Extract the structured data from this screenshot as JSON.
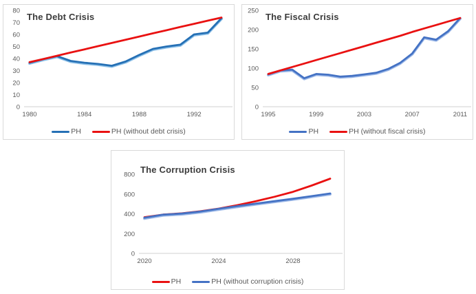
{
  "colors": {
    "axis_line": "#d9d9d9",
    "tick_text": "#595959",
    "title_text": "#3b3b3b",
    "box_border": "#d9d9d9",
    "background": "#ffffff"
  },
  "chart_data": [
    {
      "type": "line",
      "title": "The Debt Crisis",
      "x": [
        1980,
        1981,
        1982,
        1983,
        1984,
        1985,
        1986,
        1987,
        1988,
        1989,
        1990,
        1991,
        1992,
        1993,
        1994
      ],
      "xticks": [
        1980,
        1984,
        1988,
        1992
      ],
      "yticks": [
        0,
        10,
        20,
        30,
        40,
        50,
        60,
        70,
        80
      ],
      "ylim": [
        0,
        80
      ],
      "grid": false,
      "legend_position": "bottom",
      "series": [
        {
          "name": "PH",
          "color": "#2570b5",
          "edge": "#8dc0e8",
          "values": [
            36.5,
            39.5,
            42,
            38,
            36.5,
            35.5,
            34,
            37.5,
            43,
            48,
            50,
            51.5,
            60,
            61.5,
            73.5
          ]
        },
        {
          "name": "PH (without debt crisis)",
          "color": "#e91111",
          "values": [
            37,
            39.6,
            42.3,
            45,
            47.6,
            50.3,
            52.9,
            55.6,
            58.2,
            60.9,
            63.5,
            66.2,
            68.8,
            71.4,
            74
          ]
        }
      ]
    },
    {
      "type": "line",
      "title": "The Fiscal Crisis",
      "x": [
        1995,
        1996,
        1997,
        1998,
        1999,
        2000,
        2001,
        2002,
        2003,
        2004,
        2005,
        2006,
        2007,
        2008,
        2009,
        2010,
        2011
      ],
      "xticks": [
        1995,
        1999,
        2003,
        2007,
        2011
      ],
      "yticks": [
        0,
        50,
        100,
        150,
        200,
        250
      ],
      "ylim": [
        0,
        250
      ],
      "grid": false,
      "legend_position": "bottom",
      "series": [
        {
          "name": "PH",
          "color": "#4472c4",
          "edge": "#9db9e8",
          "values": [
            84,
            94,
            96,
            74,
            85,
            83,
            78,
            80,
            84,
            88,
            98,
            114,
            138,
            180,
            174,
            196,
            230
          ]
        },
        {
          "name": "PH (without fiscal crisis)",
          "color": "#e91111",
          "values": [
            85,
            94,
            103,
            112,
            121,
            130,
            139,
            148,
            157,
            166,
            175,
            184,
            194,
            203,
            212,
            221,
            230
          ]
        }
      ]
    },
    {
      "type": "line",
      "title": "The Corruption Crisis",
      "x": [
        2020,
        2021,
        2022,
        2023,
        2024,
        2025,
        2026,
        2027,
        2028,
        2029,
        2030
      ],
      "xticks": [
        2020,
        2024,
        2028
      ],
      "yticks": [
        0,
        200,
        400,
        600,
        800
      ],
      "ylim": [
        0,
        800
      ],
      "grid": false,
      "legend_position": "bottom",
      "series": [
        {
          "name": "PH",
          "color": "#e91111",
          "values": [
            365,
            392,
            404,
            425,
            452,
            487,
            527,
            572,
            622,
            685,
            755
          ]
        },
        {
          "name": "PH (without corruption crisis)",
          "color": "#4472c4",
          "edge": "#9db9e8",
          "values": [
            360,
            391,
            402,
            422,
            450,
            477,
            503,
            527,
            552,
            578,
            605
          ]
        }
      ]
    }
  ]
}
